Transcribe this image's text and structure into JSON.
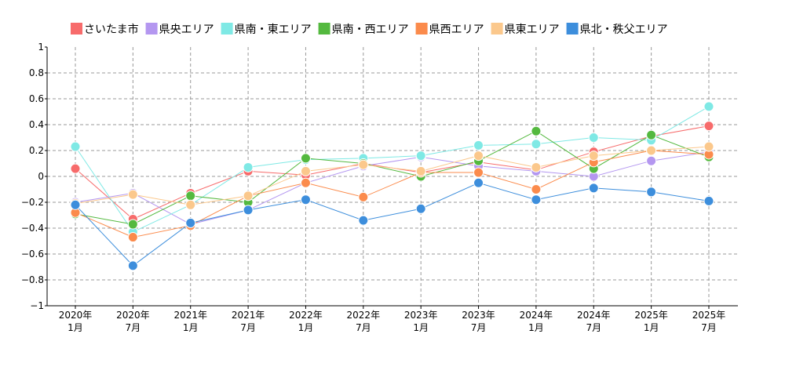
{
  "chart_data": {
    "type": "line",
    "categories": [
      [
        "2020年",
        "1月"
      ],
      [
        "2020年",
        "7月"
      ],
      [
        "2021年",
        "1月"
      ],
      [
        "2021年",
        "7月"
      ],
      [
        "2022年",
        "1月"
      ],
      [
        "2022年",
        "7月"
      ],
      [
        "2023年",
        "1月"
      ],
      [
        "2023年",
        "7月"
      ],
      [
        "2024年",
        "1月"
      ],
      [
        "2024年",
        "7月"
      ],
      [
        "2025年",
        "1月"
      ],
      [
        "2025年",
        "7月"
      ]
    ],
    "ylim": [
      -1,
      1
    ],
    "yticks": [
      "1",
      "0.8",
      "0.6",
      "0.4",
      "0.2",
      "0",
      "−0.2",
      "−0.4",
      "−0.6",
      "−0.8",
      "−1"
    ],
    "grid": true,
    "legend_position": "top",
    "series": [
      {
        "name": "さいたま市",
        "color": "#f76b6b",
        "values": [
          0.06,
          -0.33,
          -0.13,
          0.04,
          0.01,
          0.1,
          0.03,
          0.11,
          0.05,
          0.19,
          0.31,
          0.39
        ]
      },
      {
        "name": "県央エリア",
        "color": "#b497f0",
        "values": [
          -0.2,
          -0.13,
          -0.37,
          -0.26,
          -0.05,
          0.08,
          0.15,
          0.08,
          0.04,
          0.0,
          0.12,
          0.19
        ]
      },
      {
        "name": "県南・東エリア",
        "color": "#7fe9e5",
        "values": [
          0.23,
          -0.43,
          -0.22,
          0.07,
          0.13,
          0.14,
          0.16,
          0.24,
          0.25,
          0.3,
          0.28,
          0.54
        ]
      },
      {
        "name": "県南・西エリア",
        "color": "#54b93f",
        "values": [
          -0.29,
          -0.37,
          -0.15,
          -0.2,
          0.14,
          0.1,
          0.0,
          0.12,
          0.35,
          0.06,
          0.32,
          0.15
        ]
      },
      {
        "name": "県西エリア",
        "color": "#fb8b4c",
        "values": [
          -0.28,
          -0.47,
          -0.38,
          -0.15,
          -0.05,
          -0.16,
          0.03,
          0.03,
          -0.1,
          0.11,
          0.2,
          0.17
        ]
      },
      {
        "name": "県東エリア",
        "color": "#fbc88c",
        "values": [
          -0.21,
          -0.14,
          -0.22,
          -0.15,
          0.04,
          0.09,
          0.04,
          0.16,
          0.07,
          0.16,
          0.2,
          0.23
        ]
      },
      {
        "name": "県北・秩父エリア",
        "color": "#3d8edc",
        "values": [
          -0.22,
          -0.69,
          -0.36,
          -0.26,
          -0.18,
          -0.34,
          -0.25,
          -0.05,
          -0.18,
          -0.09,
          -0.12,
          -0.19
        ]
      }
    ]
  }
}
